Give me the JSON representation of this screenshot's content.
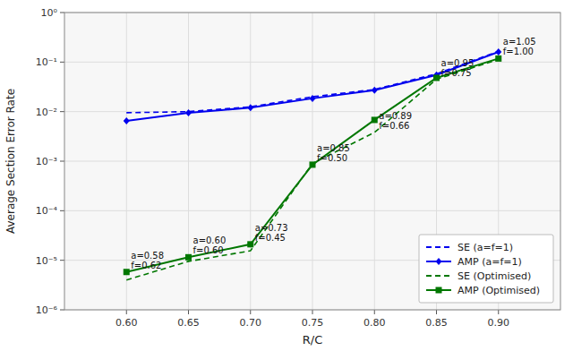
{
  "chart_data": {
    "type": "line",
    "xlabel": "R/C",
    "ylabel": "Average Section Error Rate",
    "x": [
      0.6,
      0.65,
      0.7,
      0.75,
      0.8,
      0.85,
      0.9
    ],
    "series": [
      {
        "name": "SE (a=f=1)",
        "color": "#0000EE",
        "line_style": "dashed",
        "marker": "none",
        "values": [
          0.0095,
          0.01,
          0.0125,
          0.02,
          0.028,
          0.058,
          0.165
        ]
      },
      {
        "name": "AMP (a=f=1)",
        "color": "#0000EE",
        "line_style": "solid",
        "marker": "diamond",
        "values": [
          0.0065,
          0.0095,
          0.012,
          0.0185,
          0.027,
          0.055,
          0.16
        ]
      },
      {
        "name": "SE (Optimised)",
        "color": "#007700",
        "line_style": "dashed",
        "marker": "none",
        "values": [
          4e-06,
          9.5e-06,
          1.55e-05,
          0.0009,
          0.0038,
          0.045,
          0.113
        ]
      },
      {
        "name": "AMP (Optimised)",
        "color": "#007700",
        "line_style": "solid",
        "marker": "square",
        "values": [
          5.8e-06,
          1.15e-05,
          2.1e-05,
          0.00085,
          0.0068,
          0.048,
          0.118
        ]
      }
    ],
    "annotations": [
      {
        "x": 0.6,
        "y": 5.8e-06,
        "text": "a=0.58\nf=0.62"
      },
      {
        "x": 0.65,
        "y": 1.15e-05,
        "text": "a=0.60\nf=0.60"
      },
      {
        "x": 0.7,
        "y": 2.1e-05,
        "text": "a=0.73\nf=0.45"
      },
      {
        "x": 0.75,
        "y": 0.00085,
        "text": "a=0.85\nf=0.50"
      },
      {
        "x": 0.8,
        "y": 0.0038,
        "text": "a=0.89\nf=0.66"
      },
      {
        "x": 0.85,
        "y": 0.045,
        "text": "a=0.95\nf=0.75"
      },
      {
        "x": 0.9,
        "y": 0.118,
        "text": "a=1.05\nf=1.00"
      }
    ],
    "xlim": [
      0.55,
      0.95
    ],
    "ylim": [
      1e-06,
      1
    ],
    "xticks": [
      {
        "value": 0.6,
        "label": "0.60"
      },
      {
        "value": 0.65,
        "label": "0.65"
      },
      {
        "value": 0.7,
        "label": "0.70"
      },
      {
        "value": 0.75,
        "label": "0.75"
      },
      {
        "value": 0.8,
        "label": "0.80"
      },
      {
        "value": 0.85,
        "label": "0.85"
      },
      {
        "value": 0.9,
        "label": "0.90"
      }
    ],
    "yticks": [
      {
        "value": 1e-06,
        "label": "10⁻⁶"
      },
      {
        "value": 1e-05,
        "label": "10⁻⁵"
      },
      {
        "value": 0.0001,
        "label": "10⁻⁴"
      },
      {
        "value": 0.001,
        "label": "10⁻³"
      },
      {
        "value": 0.01,
        "label": "10⁻²"
      },
      {
        "value": 0.1,
        "label": "10⁻¹"
      },
      {
        "value": 1,
        "label": "10⁰"
      }
    ],
    "log": "y",
    "grid": true,
    "legend": "lower right"
  }
}
